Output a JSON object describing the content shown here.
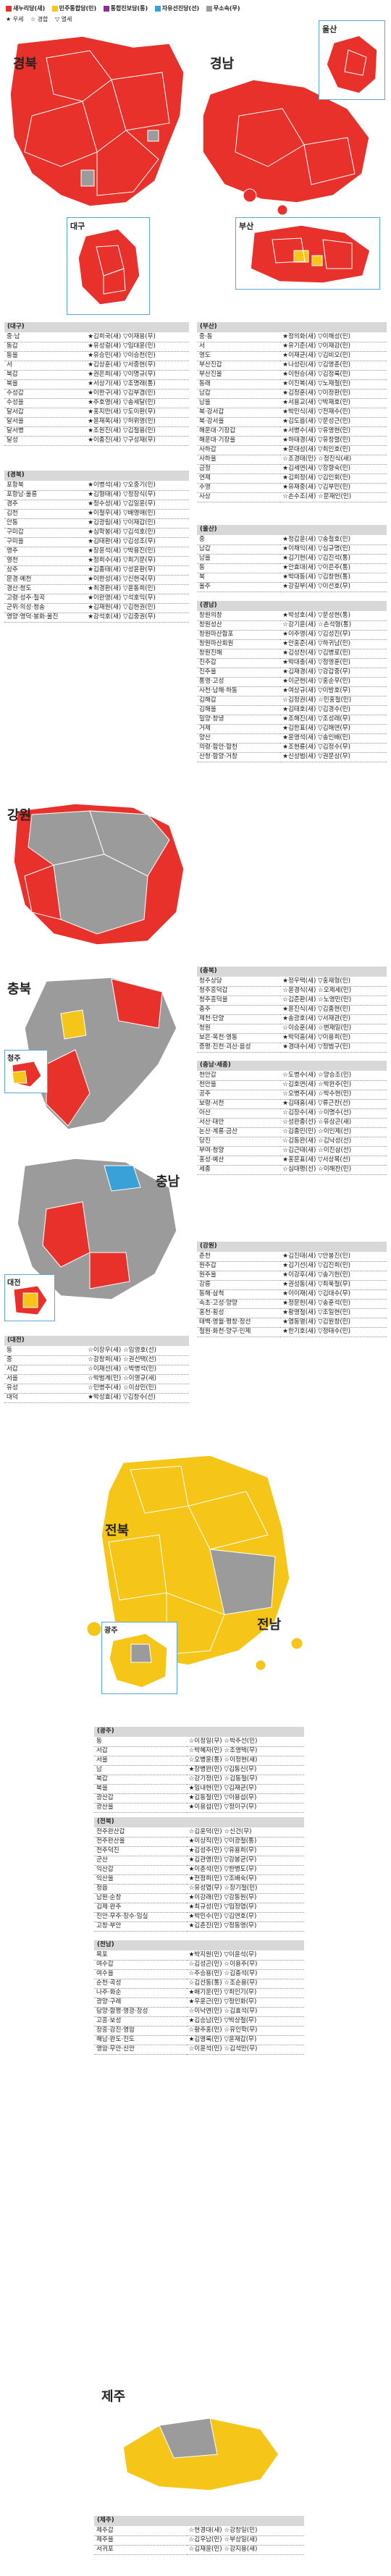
{
  "legend": {
    "items": [
      {
        "label": "새누리당(새)",
        "color": "#e8312b"
      },
      {
        "label": "민주통합당(민)",
        "color": "#f5c518"
      },
      {
        "label": "통합진보당(통)",
        "color": "#8b2e8b"
      },
      {
        "label": "자유선진당(선)",
        "color": "#3aa0d8"
      },
      {
        "label": "무소속(무)",
        "color": "#9b9b9b"
      }
    ],
    "markers": [
      "★ 우세",
      "☆ 경합",
      "▽ 열세"
    ]
  },
  "maps": {
    "gyeongbuk": "경북",
    "daegu": "대구",
    "gyeongnam": "경남",
    "ulsan": "울산",
    "busan": "부산",
    "gangwon": "강원",
    "chungbuk": "충북",
    "chungnam": "충남",
    "cheongju": "청주",
    "daejeon": "대전",
    "jeonbuk": "전북",
    "jeonnam": "전남",
    "gwangju": "광주",
    "jeju": "제주"
  },
  "sections": [
    {
      "title": "(대구)",
      "rows": [
        [
          "중·남",
          "★김희국(새) ▽이재용(무)"
        ],
        [
          "동갑",
          "★유성걸(새) ▽임대윤(민)"
        ],
        [
          "동을",
          "★유승민(새) ▽이승천(민)"
        ],
        [
          "서",
          "★김상훈(새) ▽서중현(무)"
        ],
        [
          "북갑",
          "★권은희(새) ▽이명규(무)"
        ],
        [
          "북을",
          "★서상기(새) ▽조명래(통)"
        ],
        [
          "수성갑",
          "★이한구(새) ▽김부겸(민)"
        ],
        [
          "수성을",
          "★주호영(새) ▽송세달(민)"
        ],
        [
          "달서갑",
          "★홍지만(새) ▽도이환(무)"
        ],
        [
          "달서을",
          "★윤재옥(새) ▽허위영(민)"
        ],
        [
          "달서병",
          "★조원진(새) ▽김철용(민)"
        ],
        [
          "달성",
          "★이종진(새) ▽구성재(무)"
        ]
      ]
    },
    {
      "title": "(경북)",
      "rows": [
        [
          "포항북",
          "★이병석(새) ▽오중기(민)"
        ],
        [
          "포항남·울릉",
          "★김형태(새) ▽정장식(무)"
        ],
        [
          "경주",
          "★정수성(새) ▽김일윤(무)"
        ],
        [
          "김천",
          "★이철우(새) ▽배영애(민)"
        ],
        [
          "안동",
          "★김광림(새) ▽이재갑(민)"
        ],
        [
          "구미갑",
          "★심학봉(새) ▽김석호(민)"
        ],
        [
          "구미을",
          "★김태환(새) ▽김성조(무)"
        ],
        [
          "영주",
          "★장윤석(새) ▽박용진(민)"
        ],
        [
          "영천",
          "★정희수(새) ▽최기문(무)"
        ],
        [
          "상주",
          "★김종태(새) ▽성윤환(무)"
        ],
        [
          "문경·예천",
          "★이한성(새) ▽신현국(무)"
        ],
        [
          "경산·청도",
          "★최경환(새) ▽윤동희(민)"
        ],
        [
          "고령·성주·칠곡",
          "★이완영(새) ▽석호익(무)"
        ],
        [
          "군위·의성·청송",
          "★김재원(새) ▽김현권(민)"
        ],
        [
          "영양·영덕·봉화·울진",
          "★강석호(새) ▽김중권(무)"
        ]
      ]
    },
    {
      "title": "(부산)",
      "rows": [
        [
          "중·동",
          "★정의화(새) ▽이해성(민)"
        ],
        [
          "서",
          "★유기준(새) ▽이재강(민)"
        ],
        [
          "영도",
          "★이재균(새) ▽김비오(민)"
        ],
        [
          "부산진갑",
          "★나성린(새) ▽김영춘(민)"
        ],
        [
          "부산진을",
          "★이헌승(새) ▽김정록(민)"
        ],
        [
          "동래",
          "★이진복(새) ▽노재철(민)"
        ],
        [
          "남갑",
          "★김정훈(새) ▽이정환(민)"
        ],
        [
          "남을",
          "★서용교(새) ▽박재호(민)"
        ],
        [
          "북·강서갑",
          "★박민식(새) ▽전재수(민)"
        ],
        [
          "북·강서을",
          "★김도읍(새) ▽문성근(민)"
        ],
        [
          "해운대·기장갑",
          "★서병수(새) ▽유영현(민)"
        ],
        [
          "해운대·기장을",
          "★하태경(새) ▽유창렬(민)"
        ],
        [
          "사하갑",
          "★문대성(새) ▽최인호(민)"
        ],
        [
          "사하을",
          "☆조경태(민) ☆정진식(새)"
        ],
        [
          "금정",
          "★김세연(새) ▽장향숙(민)"
        ],
        [
          "연제",
          "★김희정(새) ▽김인회(민)"
        ],
        [
          "수영",
          "★유재중(새) ▽김부민(민)"
        ],
        [
          "사상",
          "☆손수조(새) ☆문재인(민)"
        ]
      ]
    },
    {
      "title": "(울산)",
      "rows": [
        [
          "중",
          "★정갑윤(새) ▽송철호(민)"
        ],
        [
          "남갑",
          "★이채익(새) ▽심규명(민)"
        ],
        [
          "남을",
          "★김기현(새) ▽김진석(통)"
        ],
        [
          "동",
          "★안효대(새) ▽이은주(통)"
        ],
        [
          "북",
          "★박대동(새) ▽김창현(통)"
        ],
        [
          "울주",
          "★강길부(새) ▽이선호(무)"
        ]
      ]
    },
    {
      "title": "(경남)",
      "rows": [
        [
          "창원의창",
          "★박성호(새) ▽문성현(통)"
        ],
        [
          "창원성산",
          "☆강기윤(새) ☆손석형(통)"
        ],
        [
          "창원마산합포",
          "★이주영(새) ▽김성진(무)"
        ],
        [
          "창원마산회원",
          "★안홍준(새) ▽하귀남(민)"
        ],
        [
          "창원진해",
          "★김성찬(새) ▽김병로(민)"
        ],
        [
          "진주갑",
          "★박대출(새) ▽정영훈(민)"
        ],
        [
          "진주을",
          "★김재경(새) ▽강갑중(무)"
        ],
        [
          "통영·고성",
          "★이군현(새) ▽홍순우(민)"
        ],
        [
          "사천·남해·하동",
          "★여상규(새) ▽이방호(무)"
        ],
        [
          "김해갑",
          "☆김정권(새) ☆민홍철(민)"
        ],
        [
          "김해을",
          "★김태호(새) ▽김경수(민)"
        ],
        [
          "밀양·창녕",
          "★조해진(새) ▽조성래(무)"
        ],
        [
          "거제",
          "★김한표(새) ▽김해연(무)"
        ],
        [
          "양산",
          "★윤영석(새) ▽송인배(민)"
        ],
        [
          "의령·함안·합천",
          "★조현룡(새) ▽김정수(무)"
        ],
        [
          "산청·함양·거창",
          "★신성범(새) ▽권문상(무)"
        ]
      ]
    },
    {
      "title": "(충북)",
      "rows": [
        [
          "청주상당",
          "★정우택(새) ▽홍재형(민)"
        ],
        [
          "청주흥덕갑",
          "☆윤경식(새) ☆오제세(민)"
        ],
        [
          "청주흥덕을",
          "☆김준환(새) ☆노영민(민)"
        ],
        [
          "충주",
          "★윤진식(새) ▽김종현(민)"
        ],
        [
          "제천·단양",
          "★송광호(새) ▽서재관(민)"
        ],
        [
          "청원",
          "☆이승훈(새) ☆변재일(민)"
        ],
        [
          "보은·옥천·영동",
          "★박덕흠(새) ▽이용희(민)"
        ],
        [
          "증평·진천·괴산·음성",
          "★경대수(새) ▽정범구(민)"
        ]
      ]
    },
    {
      "title": "(충남·세종)",
      "rows": [
        [
          "천안갑",
          "☆도병수(새) ☆양승조(민)"
        ],
        [
          "천안을",
          "☆김호연(새) ☆박완주(민)"
        ],
        [
          "공주",
          "☆오병주(새) ☆박수현(민)"
        ],
        [
          "보령·서천",
          "★김태흠(새) ▽류근찬(선)"
        ],
        [
          "아산",
          "☆김장수(새) ☆이명수(선)"
        ],
        [
          "서산·태안",
          "☆성완종(선) ☆유상곤(새)"
        ],
        [
          "논산·계룡·금산",
          "☆김종민(민) ☆이인제(선)"
        ],
        [
          "당진",
          "☆김동완(새) ☆김낙성(선)"
        ],
        [
          "부여·청양",
          "☆김근태(새) ☆이진삼(선)"
        ],
        [
          "홍성·예산",
          "★홍문표(새) ▽서상목(선)"
        ],
        [
          "세종",
          "☆심대평(선) ☆이해찬(민)"
        ]
      ]
    },
    {
      "title": "(강원)",
      "rows": [
        [
          "춘천",
          "★김진태(새) ▽안봉진(민)"
        ],
        [
          "원주갑",
          "★김기선(새) ▽김진희(민)"
        ],
        [
          "원주을",
          "★이강후(새) ▽송기헌(민)"
        ],
        [
          "강릉",
          "★권성동(새) ▽최욱철(무)"
        ],
        [
          "동해·삼척",
          "★이이재(새) ▽김대수(무)"
        ],
        [
          "속초·고성·양양",
          "★정문헌(새) ▽송훈석(민)"
        ],
        [
          "홍천·횡성",
          "★황영철(새) ▽조일현(민)"
        ],
        [
          "태백·영월·평창·정선",
          "★염동열(새) ▽김원창(민)"
        ],
        [
          "철원·화천·양구·인제",
          "★한기호(새) ▽정태수(민)"
        ]
      ]
    },
    {
      "title": "(대전)",
      "rows": [
        [
          "동",
          "☆이장우(새) ☆임영호(선)"
        ],
        [
          "중",
          "☆강창희(새) ☆권선택(선)"
        ],
        [
          "서갑",
          "☆이재선(새) ☆박병석(민)"
        ],
        [
          "서을",
          "☆박범계(민) ☆이영규(새)"
        ],
        [
          "유성",
          "☆민병주(새) ☆이상민(민)"
        ],
        [
          "대덕",
          "★박성효(새) ▽김창수(선)"
        ]
      ]
    },
    {
      "title": "(광주)",
      "rows": [
        [
          "동",
          "☆이정일(무) ☆박주선(민)"
        ],
        [
          "서갑",
          "☆박혜자(민) ☆조영택(무)"
        ],
        [
          "서을",
          "☆오병윤(통) ☆이정현(새)"
        ],
        [
          "남",
          "★장병완(민) ▽김동신(무)"
        ],
        [
          "북갑",
          "☆강기정(민) ☆김동철(무)"
        ],
        [
          "북을",
          "★임내현(민) ▽김재균(무)"
        ],
        [
          "광산갑",
          "★김동철(민) ▽이용섭(무)"
        ],
        [
          "광산을",
          "★이용섭(민) ▽정이구(무)"
        ]
      ]
    },
    {
      "title": "(전북)",
      "rows": [
        [
          "전주완산갑",
          "☆김윤덕(민) ☆신건(무)"
        ],
        [
          "전주완산을",
          "★이상직(민) ▽이광철(통)"
        ],
        [
          "전주덕진",
          "★김성주(민) ▽유용희(무)"
        ],
        [
          "군산",
          "★김관영(민) ▽강봉균(무)"
        ],
        [
          "익산갑",
          "★이춘석(민) ▽한병도(무)"
        ],
        [
          "익산을",
          "★전정희(민) ▽조배숙(무)"
        ],
        [
          "정읍",
          "☆유성엽(무) ☆장기철(민)"
        ],
        [
          "남원·순창",
          "★이강래(민) ▽강동원(무)"
        ],
        [
          "김제·완주",
          "★최규성(민) ▽임정엽(무)"
        ],
        [
          "진안·무주·장수·임실",
          "★박민수(민) ▽김연호(무)"
        ],
        [
          "고창·부안",
          "★김춘진(민) ▽정동영(무)"
        ]
      ]
    },
    {
      "title": "(전남)",
      "rows": [
        [
          "목포",
          "★박지원(민) ▽이윤석(무)"
        ],
        [
          "여수갑",
          "☆김성곤(민) ☆이용주(무)"
        ],
        [
          "여수을",
          "☆주승용(민) ☆김충석(무)"
        ],
        [
          "순천·곡성",
          "☆김선동(통) ☆조순용(무)"
        ],
        [
          "나주·화순",
          "★배기운(민) ▽최인기(무)"
        ],
        [
          "광양·구례",
          "★우윤근(민) ▽정인화(무)"
        ],
        [
          "담양·함평·영광·장성",
          "☆이낙연(민) ☆김효석(무)"
        ],
        [
          "고흥·보성",
          "★김승남(민) ▽박상철(무)"
        ],
        [
          "장흥·강진·영암",
          "☆황주홍(민) ☆유인학(무)"
        ],
        [
          "해남·완도·진도",
          "★김영록(민) ▽윤재갑(무)"
        ],
        [
          "영암·무안·신안",
          "☆이윤석(민) ☆김석만(무)"
        ]
      ]
    },
    {
      "title": "(제주)",
      "rows": [
        [
          "제주갑",
          "☆현경대(새) ☆강창일(민)"
        ],
        [
          "제주을",
          "☆김우남(민) ☆부상일(새)"
        ],
        [
          "서귀포",
          "☆김재윤(민) ☆강지용(새)"
        ]
      ]
    }
  ]
}
